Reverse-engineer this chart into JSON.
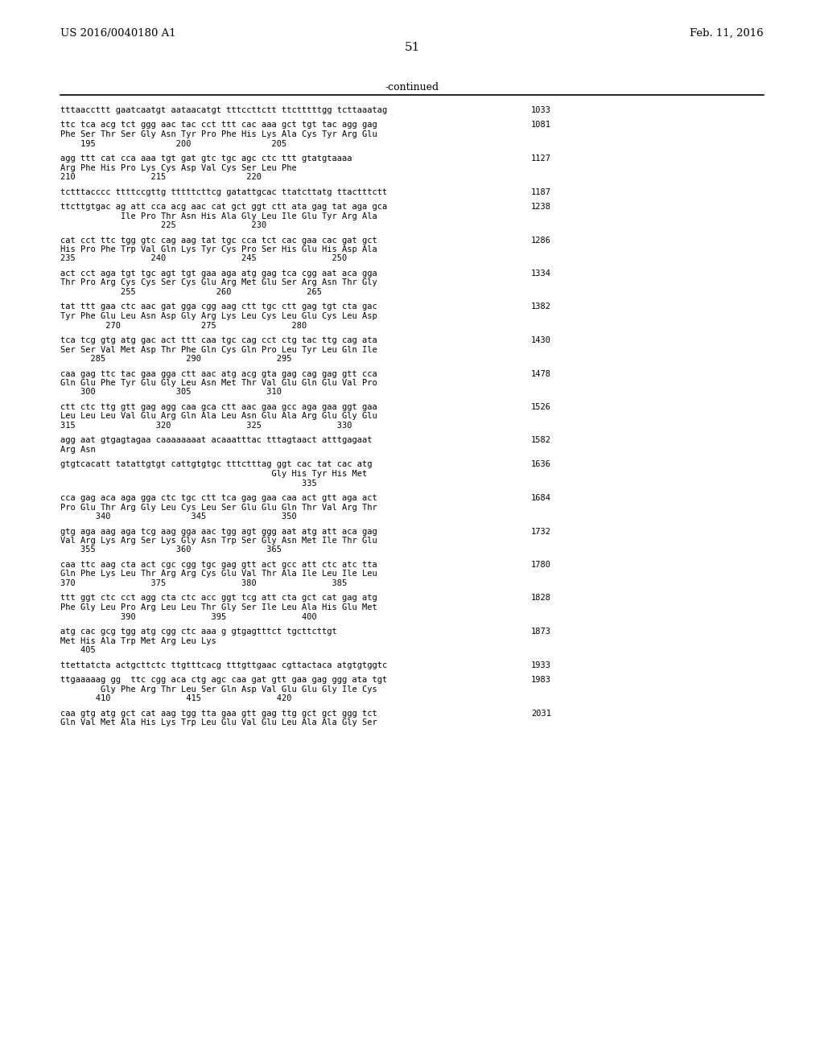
{
  "header_left": "US 2016/0040180 A1",
  "header_right": "Feb. 11, 2016",
  "page_number": "51",
  "continued_label": "-continued",
  "background_color": "#ffffff",
  "text_color": "#000000",
  "content": [
    {
      "lines": [
        "tttaaccttt gaatcaatgt aataacatgt tttccttctt ttctttttgg tcttaaatag",
        null,
        null
      ],
      "num": "1033"
    },
    {
      "lines": [
        "ttc tca acg tct ggg aac tac cct ttt cac aaa gct tgt tac agg gag",
        "Phe Ser Thr Ser Gly Asn Tyr Pro Phe His Lys Ala Cys Tyr Arg Glu",
        "    195                200                205"
      ],
      "num": "1081"
    },
    {
      "lines": [
        "agg ttt cat cca aaa tgt gat gtc tgc agc ctc ttt gtatgtaaaa",
        "Arg Phe His Pro Lys Cys Asp Val Cys Ser Leu Phe",
        "210               215                220"
      ],
      "num": "1127"
    },
    {
      "lines": [
        "tctttacccc ttttccgttg tttttcttcg gatattgcac ttatcttatg ttactttctt",
        null,
        null
      ],
      "num": "1187"
    },
    {
      "lines": [
        "ttcttgtgac ag att cca acg aac cat gct ggt ctt ata gag tat aga gca",
        "            Ile Pro Thr Asn His Ala Gly Leu Ile Glu Tyr Arg Ala",
        "                    225               230"
      ],
      "num": "1238"
    },
    {
      "lines": [
        "cat cct ttc tgg gtc cag aag tat tgc cca tct cac gaa cac gat gct",
        "His Pro Phe Trp Val Gln Lys Tyr Cys Pro Ser His Glu His Asp Ala",
        "235               240               245               250"
      ],
      "num": "1286"
    },
    {
      "lines": [
        "act cct aga tgt tgc agt tgt gaa aga atg gag tca cgg aat aca gga",
        "Thr Pro Arg Cys Cys Ser Cys Glu Arg Met Glu Ser Arg Asn Thr Gly",
        "            255                260               265"
      ],
      "num": "1334"
    },
    {
      "lines": [
        "tat ttt gaa ctc aac gat gga cgg aag ctt tgc ctt gag tgt cta gac",
        "Tyr Phe Glu Leu Asn Asp Gly Arg Lys Leu Cys Leu Glu Cys Leu Asp",
        "         270                275               280"
      ],
      "num": "1382"
    },
    {
      "lines": [
        "tca tcg gtg atg gac act ttt caa tgc cag cct ctg tac ttg cag ata",
        "Ser Ser Val Met Asp Thr Phe Gln Cys Gln Pro Leu Tyr Leu Gln Ile",
        "      285                290               295"
      ],
      "num": "1430"
    },
    {
      "lines": [
        "caa gag ttc tac gaa gga ctt aac atg acg gta gag cag gag gtt cca",
        "Gln Glu Phe Tyr Glu Gly Leu Asn Met Thr Val Glu Gln Glu Val Pro",
        "    300                305               310"
      ],
      "num": "1478"
    },
    {
      "lines": [
        "ctt ctc ttg gtt gag agg caa gca ctt aac gaa gcc aga gaa ggt gaa",
        "Leu Leu Leu Val Glu Arg Gln Ala Leu Asn Glu Ala Arg Glu Gly Glu",
        "315                320               325               330"
      ],
      "num": "1526"
    },
    {
      "lines": [
        "agg aat gtgagtagaa caaaaaaaat acaaatttac tttagtaact atttgagaat",
        "Arg Asn",
        null
      ],
      "num": "1582"
    },
    {
      "lines": [
        "gtgtcacatt tatattgtgt cattgtgtgc tttctttag ggt cac tat cac atg",
        "                                          Gly His Tyr His Met",
        "                                                335"
      ],
      "num": "1636"
    },
    {
      "lines": [
        "cca gag aca aga gga ctc tgc ctt tca gag gaa caa act gtt aga act",
        "Pro Glu Thr Arg Gly Leu Cys Leu Ser Glu Glu Gln Thr Val Arg Thr",
        "       340                345               350"
      ],
      "num": "1684"
    },
    {
      "lines": [
        "gtg aga aag aga tcg aag gga aac tgg agt ggg aat atg att aca gag",
        "Val Arg Lys Arg Ser Lys Gly Asn Trp Ser Gly Asn Met Ile Thr Glu",
        "    355                360               365"
      ],
      "num": "1732"
    },
    {
      "lines": [
        "caa ttc aag cta act cgc cgg tgc gag gtt act gcc att ctc atc tta",
        "Gln Phe Lys Leu Thr Arg Arg Cys Glu Val Thr Ala Ile Leu Ile Leu",
        "370               375               380               385"
      ],
      "num": "1780"
    },
    {
      "lines": [
        "ttt ggt ctc cct agg cta ctc acc ggt tcg att cta gct cat gag atg",
        "Phe Gly Leu Pro Arg Leu Leu Thr Gly Ser Ile Leu Ala His Glu Met",
        "            390               395               400"
      ],
      "num": "1828"
    },
    {
      "lines": [
        "atg cac gcg tgg atg cgg ctc aaa g gtgagtttct tgcttcttgt",
        "Met His Ala Trp Met Arg Leu Lys",
        "    405"
      ],
      "num": "1873"
    },
    {
      "lines": [
        "ttettatcta actgcttctc ttgtttcacg tttgttgaac cgttactaca atgtgtggtc",
        null,
        null
      ],
      "num": "1933"
    },
    {
      "lines": [
        "ttgaaaaag gg  ttc cgg aca ctg agc caa gat gtt gaa gag ggg ata tgt",
        "        Gly Phe Arg Thr Leu Ser Gln Asp Val Glu Glu Gly Ile Cys",
        "       410               415               420"
      ],
      "num": "1983"
    },
    {
      "lines": [
        "caa gtg atg gct cat aag tgg tta gaa gtt gag ttg gct gct ggg tct",
        "Gln Val Met Ala His Lys Trp Leu Glu Val Glu Leu Ala Ala Gly Ser",
        null
      ],
      "num": "2031"
    }
  ]
}
